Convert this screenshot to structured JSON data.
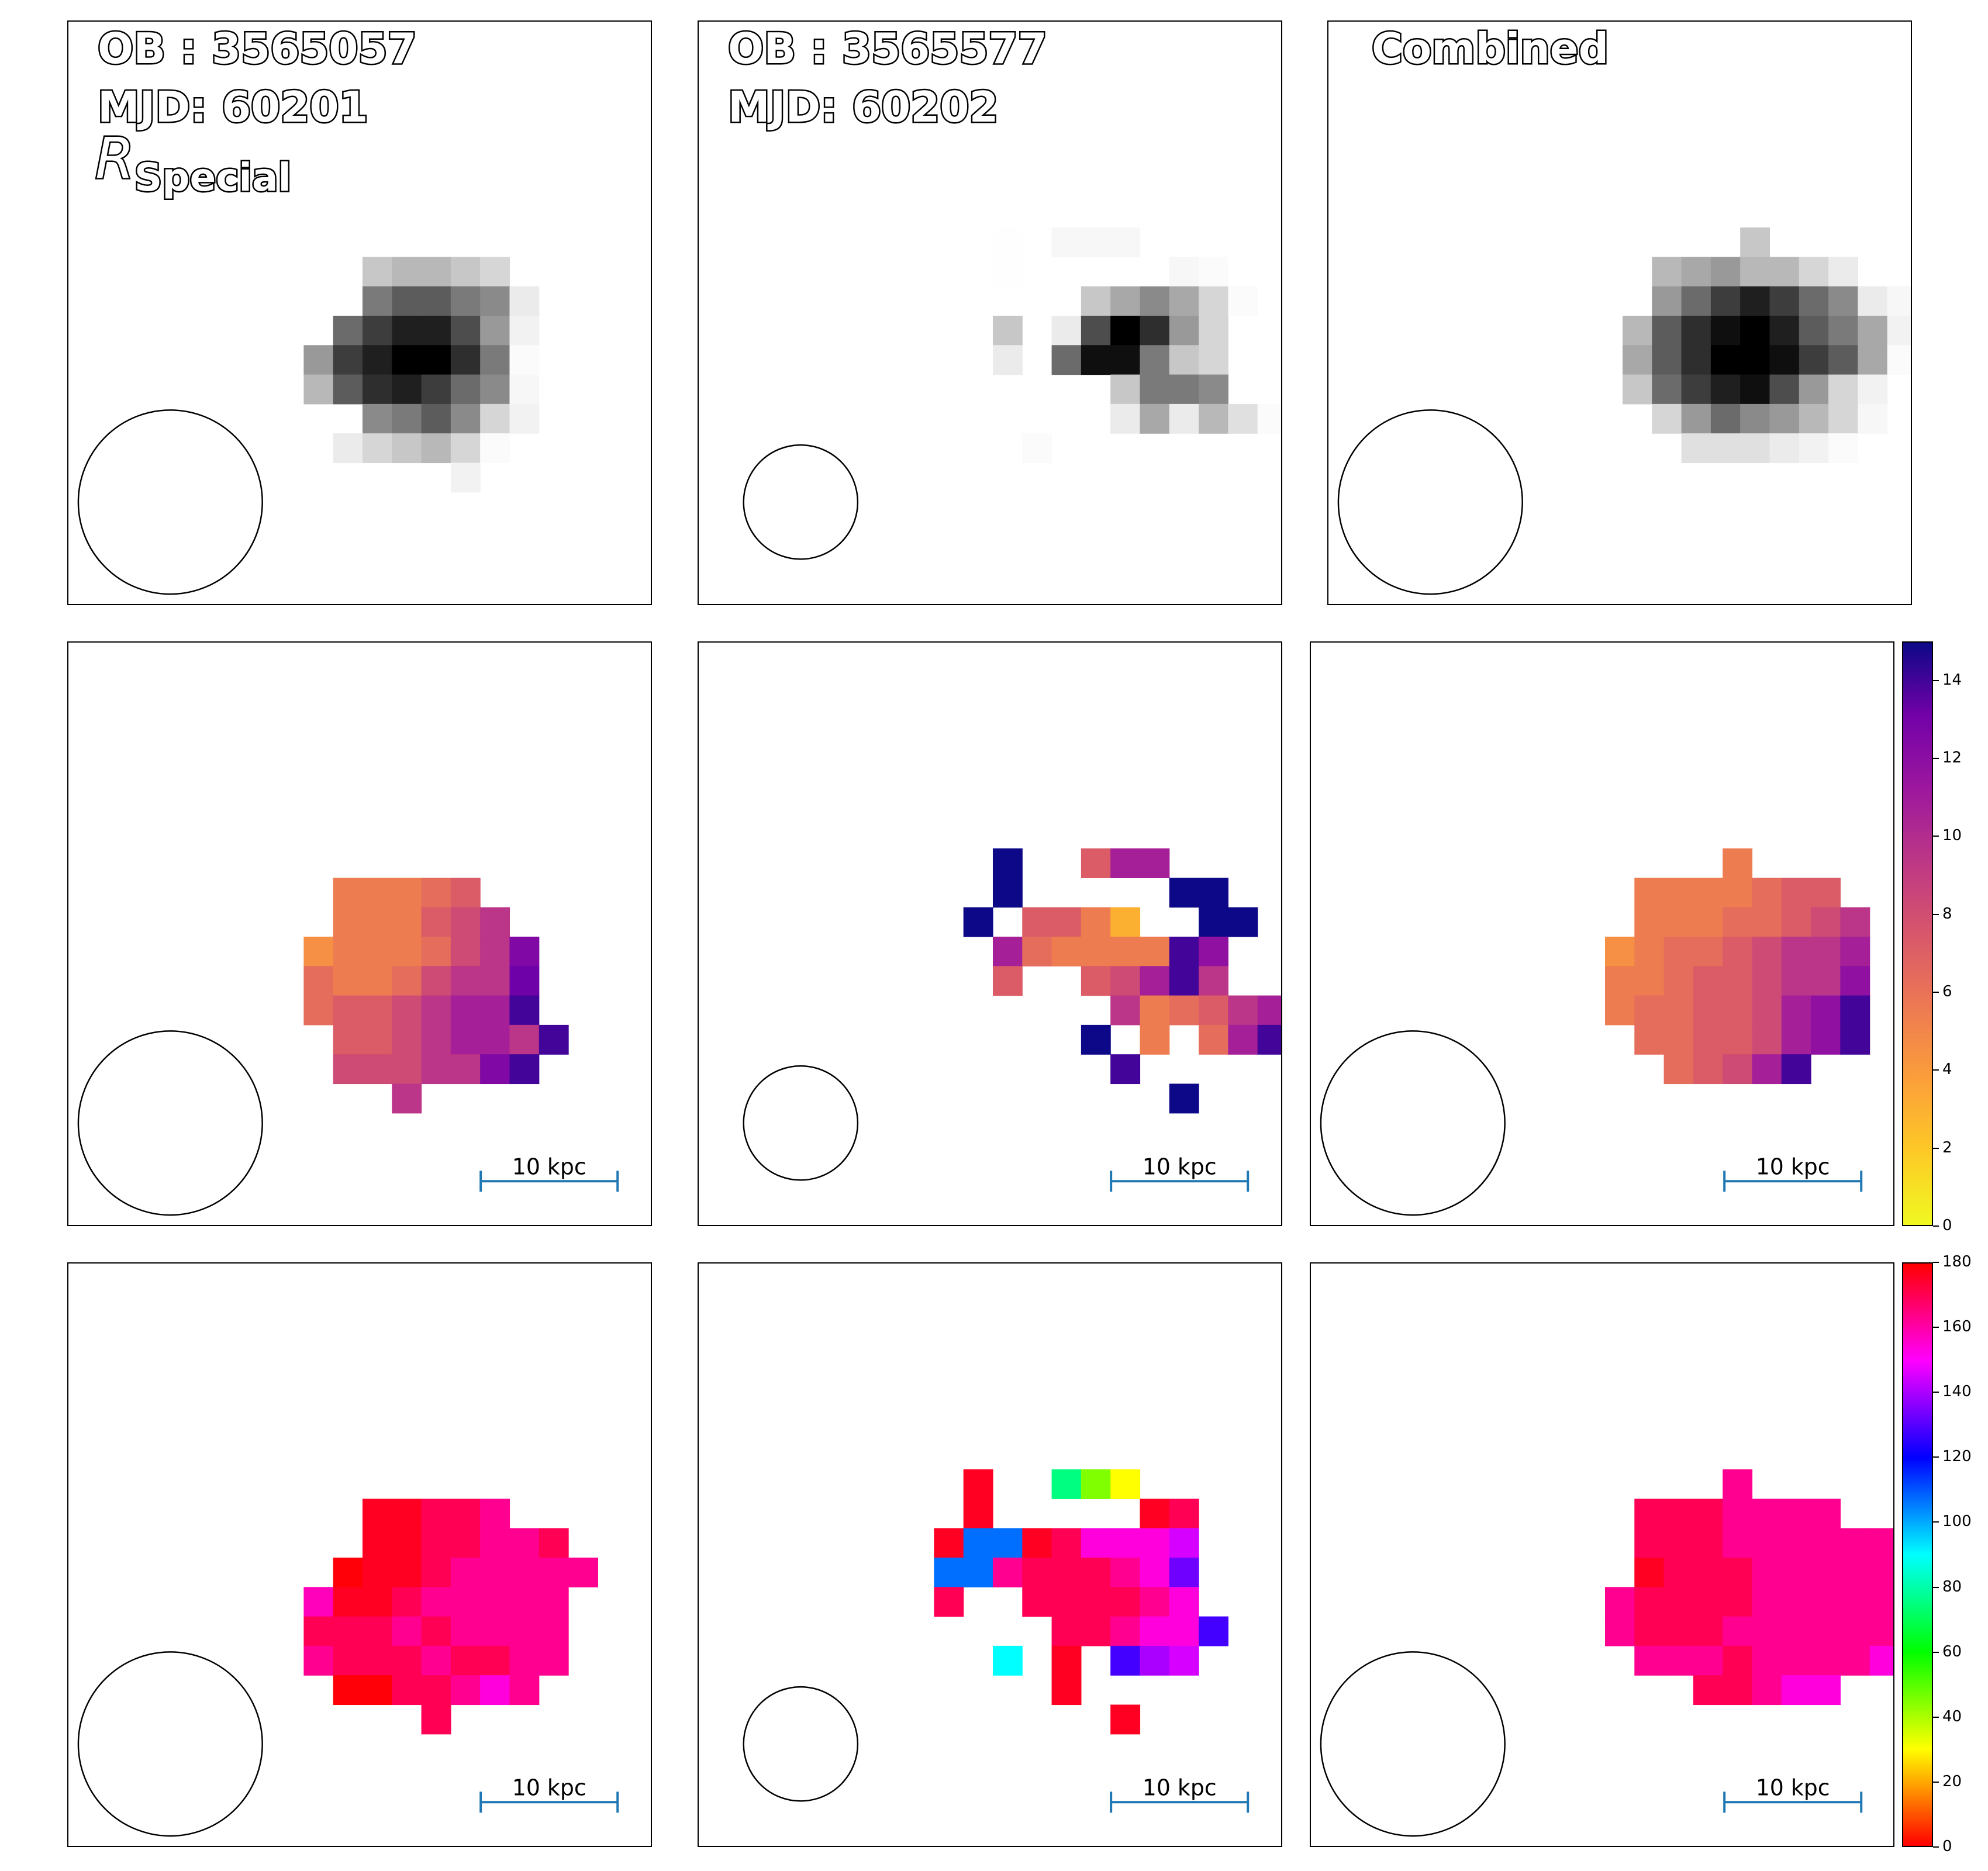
{
  "chart_data": {
    "type": "heatmap",
    "panels": [
      {
        "name": "flux-ob1",
        "cmap": "gray",
        "title_lines": [
          "OB : 3565057",
          "MJD: 60201"
        ],
        "filter_main": "R",
        "filter_sub": "Special",
        "beam": "large",
        "grid": [
          "......................",
          "......................",
          "......................",
          "......................",
          "......................",
          "......................",
          "......................",
          "......................",
          "..........DCCDE.......",
          "..........86689G......",
          ".........74225AH......",
          "........A420038J......",
          "........C632479I......",
          "..........9869EH......",
          ".........GEDCEJ.......",
          ".............H........",
          "......................",
          "......................",
          "......................",
          "......................",
          "......................",
          "......................"
        ]
      },
      {
        "name": "flux-ob2",
        "cmap": "gray",
        "title_lines": [
          "OB : 3565577",
          "MJD: 60202"
        ],
        "filter_main": "",
        "filter_sub": "",
        "beam": "small",
        "grid": [
          "......................",
          "......................",
          "......................",
          "......................",
          "......................",
          "......................",
          "......................",
          "..........K.III.......",
          "..........K.....IJ....",
          ".............DB9BEJ...",
          "..........D.G503AE....",
          "..........G.7118DE....",
          "..............D889....",
          "..............GBGCFJ..",
          "...........J..........",
          "......................",
          "......................",
          "......................",
          "......................",
          "......................",
          "......................",
          "......................"
        ]
      },
      {
        "name": "flux-combined",
        "cmap": "gray",
        "title_lines": [
          "Combined"
        ],
        "filter_main": "",
        "filter_sub": "",
        "beam": "large",
        "grid": [
          "......................",
          "......................",
          "......................",
          "......................",
          "......................",
          "......................",
          "......................",
          "..............D.......",
          "...........CBACCEG....",
          "...........A742479GI..",
          "..........C6310268BH..",
          "..........B6300146BJ..",
          "..........D74215AEH...",
          "...........EA79ACEI...",
          "............FFFGHJ....",
          "......................",
          "......................",
          "......................",
          "......................",
          "......................",
          "......................",
          "......................"
        ]
      },
      {
        "name": "dispersion-ob1",
        "cmap": "plasma_r",
        "beam": "large",
        "scalebar": "10 kpc",
        "grid": [
          "......................",
          "......................",
          "......................",
          "......................",
          "......................",
          "......................",
          "......................",
          "......................",
          ".........55567........",
          ".........555789.......",
          "........4555689Y......",
          "........6556899Z......",
          "........67789AAD......",
          ".........7789AA9D.....",
          ".........88899YD......",
          "...........9..........",
          "......................",
          "......................",
          "......................",
          "......................",
          "......................",
          "......................"
        ]
      },
      {
        "name": "dispersion-ob2",
        "cmap": "plasma_r",
        "beam": "small",
        "scalebar": "10 kpc",
        "grid": [
          "......................",
          "......................",
          "......................",
          "......................",
          "......................",
          "......................",
          "......................",
          "..........E..7AA......",
          "..........E.....EE....",
          ".........E.7753..EE...",
          "..........A65555DB....",
          "..........7..78AD9....",
          "..............95679A..",
          ".............E.5.6AD..",
          "..............D.......",
          "................E.....",
          "......................",
          "......................",
          "......................",
          "......................",
          "......................",
          "......................"
        ]
      },
      {
        "name": "dispersion-combined",
        "cmap": "plasma_r",
        "beam": "large",
        "scalebar": "10 kpc",
        "grid": [
          "......................",
          "......................",
          "......................",
          "......................",
          "......................",
          "......................",
          "......................",
          "..............5.......",
          "...........5555677....",
          "...........55566789...",
          "..........45667899A...",
          "..........55677899B...",
          "..........566778ABD...",
          "...........66778ABD...",
          "............678AD.....",
          "......................",
          "......................",
          "......................",
          "......................",
          "......................",
          "......................",
          "......................"
        ]
      },
      {
        "name": "angle-ob1",
        "cmap": "hsv",
        "beam": "large",
        "scalebar": "10 kpc",
        "grid": [
          "......................",
          "......................",
          "......................",
          "......................",
          "......................",
          "......................",
          "......................",
          "......................",
          "..........aabbc.......",
          "..........aabbccb.....",
          ".........zaabccccc....",
          "........eaabccccc.....",
          "........bbbcbcccc.....",
          "........cbbbcbbcc.....",
          ".........zzbbcdc......",
          "............b.........",
          "......................",
          "......................",
          "......................",
          "......................",
          "......................",
          "......................"
        ]
      },
      {
        "name": "angle-ob2",
        "cmap": "hsv",
        "beam": "small",
        "scalebar": "10 kpc",
        "grid": [
          "......................",
          "......................",
          "......................",
          "......................",
          "......................",
          "......................",
          "......................",
          ".........a..MNO.......",
          ".........a.....ab.....",
          "........aQQabdddf.....",
          "........PPcbbbcdh.....",
          "........b..bbbbcd.....",
          "............bbcddi....",
          "..........R.a.jgf.....",
          "............a.........",
          "..............a.......",
          "......................",
          "......................",
          "......................",
          "......................",
          "......................",
          "......................"
        ]
      },
      {
        "name": "angle-combined",
        "cmap": "hsv",
        "beam": "large",
        "scalebar": "10 kpc",
        "grid": [
          "......................",
          "......................",
          "......................",
          "......................",
          "......................",
          "......................",
          "......................",
          "..............c.......",
          "...........bbbcccc....",
          "...........bbbcccccc..",
          "...........abbbcccccc.",
          "..........cbbbbccccccc",
          "..........cbbbccccccc.",
          "...........cccbccccd..",
          ".............bbcdd....",
          "......................",
          "......................",
          "......................",
          "......................",
          "......................",
          "......................",
          "......................"
        ]
      }
    ],
    "flux_levels": {
      "0": 0.0,
      "1": 0.06,
      "2": 0.12,
      "3": 0.18,
      "4": 0.24,
      "5": 0.3,
      "6": 0.36,
      "7": 0.42,
      "8": 0.48,
      "9": 0.54,
      "A": 0.6,
      "B": 0.66,
      "C": 0.72,
      "D": 0.78,
      "E": 0.84,
      "F": 0.88,
      "G": 0.92,
      "H": 0.95,
      "I": 0.97,
      "J": 0.985,
      "K": 0.995
    },
    "dispersion_levels": {
      "3": 3,
      "4": 4.5,
      "5": 5.5,
      "6": 6.3,
      "7": 7.2,
      "8": 8.2,
      "9": 9.5,
      "A": 10.8,
      "B": 11.8,
      "D": 14,
      "E": 15,
      "Y": 12.5,
      "Z": 13.2
    },
    "angle_levels": {
      "a": 176,
      "b": 170,
      "c": 163,
      "d": 154,
      "e": 158,
      "f": 145,
      "g": 140,
      "h": 133,
      "i": 128,
      "j": 128,
      "M": 75,
      "N": 45,
      "O": 30,
      "P": 107,
      "Q": 107,
      "R": 90,
      "z": 179
    },
    "colorbars": [
      {
        "name": "dispersion-colorbar",
        "cmap": "plasma_r",
        "range": [
          0,
          15
        ],
        "ticks": [
          "0",
          "2",
          "4",
          "6",
          "8",
          "10",
          "12",
          "14"
        ]
      },
      {
        "name": "angle-colorbar",
        "cmap": "hsv",
        "range": [
          0,
          180
        ],
        "ticks": [
          "0",
          "20",
          "40",
          "60",
          "80",
          "100",
          "120",
          "140",
          "160",
          "180"
        ]
      }
    ]
  }
}
